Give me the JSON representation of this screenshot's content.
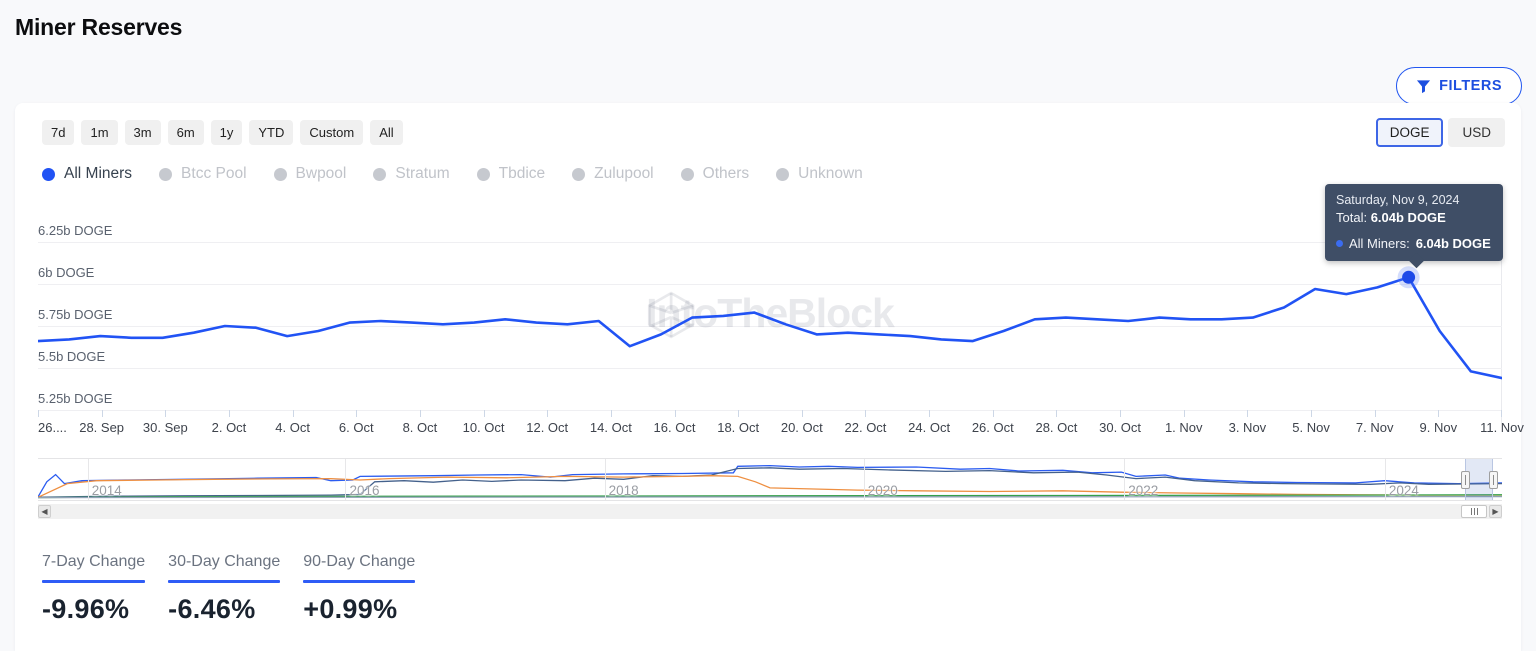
{
  "header": {
    "title": "Miner Reserves",
    "filters_label": "FILTERS"
  },
  "watermark": "IntoTheBlock",
  "time_ranges": [
    "7d",
    "1m",
    "3m",
    "6m",
    "1y",
    "YTD",
    "Custom",
    "All"
  ],
  "currency_options": [
    {
      "label": "DOGE",
      "selected": true
    },
    {
      "label": "USD",
      "selected": false
    }
  ],
  "legend": [
    {
      "label": "All Miners",
      "active": true
    },
    {
      "label": "Btcc Pool",
      "active": false
    },
    {
      "label": "Bwpool",
      "active": false
    },
    {
      "label": "Stratum",
      "active": false
    },
    {
      "label": "Tbdice",
      "active": false
    },
    {
      "label": "Zulupool",
      "active": false
    },
    {
      "label": "Others",
      "active": false
    },
    {
      "label": "Unknown",
      "active": false
    }
  ],
  "tooltip": {
    "date": "Saturday, Nov 9, 2024",
    "total_label": "Total:",
    "total_value": "6.04b DOGE",
    "series_label": "All Miners:",
    "series_value": "6.04b DOGE"
  },
  "stats": [
    {
      "label": "7-Day Change",
      "value": "-9.96%"
    },
    {
      "label": "30-Day Change",
      "value": "-6.46%"
    },
    {
      "label": "90-Day Change",
      "value": "+0.99%"
    }
  ],
  "colors": {
    "accent_blue": "#2257f0",
    "line_blue": "#2153f4",
    "marker_blue": "#1d49e8",
    "tooltip_bg": "#3f4e66",
    "nav_blue": "#2b5cf0",
    "nav_navy": "#44618c",
    "nav_orange": "#ee8f41",
    "nav_green": "#34a04a",
    "nav_gray": "#8fa0b5"
  },
  "chart_data": {
    "type": "line",
    "title": "Miner Reserves (DOGE)",
    "unit": "DOGE",
    "legend_position": "top-left",
    "grid": "horizontal",
    "y_ticks": [
      {
        "label": "6.25b DOGE",
        "value": 6.25
      },
      {
        "label": "6b DOGE",
        "value": 6.0
      },
      {
        "label": "5.75b DOGE",
        "value": 5.75
      },
      {
        "label": "5.5b DOGE",
        "value": 5.5
      },
      {
        "label": "5.25b DOGE",
        "value": 5.25
      }
    ],
    "ylim": [
      5.25,
      6.25
    ],
    "x_labels": [
      "26....",
      "28. Sep",
      "30. Sep",
      "2. Oct",
      "4. Oct",
      "6. Oct",
      "8. Oct",
      "10. Oct",
      "12. Oct",
      "14. Oct",
      "16. Oct",
      "18. Oct",
      "20. Oct",
      "22. Oct",
      "24. Oct",
      "26. Oct",
      "28. Oct",
      "30. Oct",
      "1. Nov",
      "3. Nov",
      "5. Nov",
      "7. Nov",
      "9. Nov",
      "11. Nov"
    ],
    "series": [
      {
        "name": "All Miners",
        "values_billion_doge": [
          5.66,
          5.67,
          5.69,
          5.68,
          5.68,
          5.71,
          5.75,
          5.74,
          5.69,
          5.72,
          5.77,
          5.78,
          5.77,
          5.76,
          5.77,
          5.79,
          5.77,
          5.76,
          5.78,
          5.63,
          5.7,
          5.8,
          5.81,
          5.83,
          5.76,
          5.7,
          5.71,
          5.7,
          5.69,
          5.67,
          5.66,
          5.72,
          5.79,
          5.8,
          5.79,
          5.78,
          5.8,
          5.79,
          5.79,
          5.8,
          5.86,
          5.97,
          5.94,
          5.98,
          6.04,
          5.72,
          5.48,
          5.44
        ]
      }
    ],
    "marker": {
      "index": 44,
      "date": "Nov 9, 2024",
      "value": 6.04
    },
    "navigator": {
      "years": [
        "2014",
        "2016",
        "2018",
        "2020",
        "2022",
        "2024"
      ],
      "year_fracs": [
        0.034,
        0.21,
        0.387,
        0.564,
        0.742,
        0.92
      ],
      "selection": [
        0.975,
        0.994
      ],
      "series": [
        {
          "color": "#2b5cf0",
          "pts": [
            [
              0,
              0.97
            ],
            [
              0.006,
              0.55
            ],
            [
              0.012,
              0.35
            ],
            [
              0.018,
              0.6
            ],
            [
              0.03,
              0.52
            ],
            [
              0.06,
              0.5
            ],
            [
              0.1,
              0.48
            ],
            [
              0.15,
              0.45
            ],
            [
              0.19,
              0.43
            ],
            [
              0.2,
              0.52
            ],
            [
              0.215,
              0.5
            ],
            [
              0.22,
              0.4
            ],
            [
              0.27,
              0.38
            ],
            [
              0.3,
              0.36
            ],
            [
              0.33,
              0.35
            ],
            [
              0.35,
              0.42
            ],
            [
              0.365,
              0.35
            ],
            [
              0.4,
              0.33
            ],
            [
              0.44,
              0.32
            ],
            [
              0.475,
              0.3
            ],
            [
              0.478,
              0.12
            ],
            [
              0.5,
              0.1
            ],
            [
              0.52,
              0.14
            ],
            [
              0.54,
              0.12
            ],
            [
              0.56,
              0.15
            ],
            [
              0.6,
              0.14
            ],
            [
              0.63,
              0.2
            ],
            [
              0.65,
              0.18
            ],
            [
              0.67,
              0.25
            ],
            [
              0.7,
              0.23
            ],
            [
              0.72,
              0.3
            ],
            [
              0.74,
              0.28
            ],
            [
              0.75,
              0.4
            ],
            [
              0.77,
              0.36
            ],
            [
              0.78,
              0.45
            ],
            [
              0.8,
              0.5
            ],
            [
              0.83,
              0.55
            ],
            [
              0.86,
              0.57
            ],
            [
              0.9,
              0.58
            ],
            [
              0.92,
              0.52
            ],
            [
              0.94,
              0.58
            ],
            [
              0.97,
              0.6
            ],
            [
              1,
              0.58
            ]
          ]
        },
        {
          "color": "#44618c",
          "pts": [
            [
              0,
              0.98
            ],
            [
              0.05,
              0.95
            ],
            [
              0.1,
              0.94
            ],
            [
              0.15,
              0.93
            ],
            [
              0.2,
              0.92
            ],
            [
              0.22,
              0.9
            ],
            [
              0.23,
              0.55
            ],
            [
              0.25,
              0.52
            ],
            [
              0.27,
              0.56
            ],
            [
              0.29,
              0.5
            ],
            [
              0.31,
              0.54
            ],
            [
              0.33,
              0.5
            ],
            [
              0.36,
              0.52
            ],
            [
              0.38,
              0.45
            ],
            [
              0.4,
              0.48
            ],
            [
              0.42,
              0.38
            ],
            [
              0.44,
              0.4
            ],
            [
              0.46,
              0.36
            ],
            [
              0.478,
              0.18
            ],
            [
              0.5,
              0.16
            ],
            [
              0.52,
              0.2
            ],
            [
              0.55,
              0.18
            ],
            [
              0.58,
              0.22
            ],
            [
              0.62,
              0.26
            ],
            [
              0.65,
              0.24
            ],
            [
              0.68,
              0.3
            ],
            [
              0.71,
              0.28
            ],
            [
              0.73,
              0.36
            ],
            [
              0.75,
              0.46
            ],
            [
              0.77,
              0.42
            ],
            [
              0.79,
              0.52
            ],
            [
              0.82,
              0.58
            ],
            [
              0.85,
              0.6
            ],
            [
              0.88,
              0.61
            ],
            [
              0.91,
              0.62
            ],
            [
              0.93,
              0.58
            ],
            [
              0.95,
              0.62
            ],
            [
              1,
              0.6
            ]
          ]
        },
        {
          "color": "#ee8f41",
          "pts": [
            [
              0,
              0.98
            ],
            [
              0.02,
              0.6
            ],
            [
              0.04,
              0.52
            ],
            [
              0.08,
              0.5
            ],
            [
              0.12,
              0.48
            ],
            [
              0.16,
              0.47
            ],
            [
              0.2,
              0.46
            ],
            [
              0.22,
              0.5
            ],
            [
              0.24,
              0.46
            ],
            [
              0.28,
              0.42
            ],
            [
              0.32,
              0.44
            ],
            [
              0.36,
              0.4
            ],
            [
              0.4,
              0.42
            ],
            [
              0.44,
              0.4
            ],
            [
              0.46,
              0.38
            ],
            [
              0.478,
              0.4
            ],
            [
              0.49,
              0.55
            ],
            [
              0.5,
              0.72
            ],
            [
              0.53,
              0.75
            ],
            [
              0.56,
              0.78
            ],
            [
              0.6,
              0.8
            ],
            [
              0.65,
              0.82
            ],
            [
              0.7,
              0.8
            ],
            [
              0.74,
              0.84
            ],
            [
              0.78,
              0.86
            ],
            [
              0.82,
              0.88
            ],
            [
              0.86,
              0.9
            ],
            [
              0.9,
              0.91
            ],
            [
              0.95,
              0.92
            ],
            [
              1,
              0.92
            ]
          ]
        },
        {
          "color": "#34a04a",
          "pts": [
            [
              0,
              0.99
            ],
            [
              0.1,
              0.96
            ],
            [
              0.3,
              0.95
            ],
            [
              0.5,
              0.94
            ],
            [
              0.7,
              0.93
            ],
            [
              0.9,
              0.92
            ],
            [
              1,
              0.91
            ]
          ]
        },
        {
          "color": "#8fa0b5",
          "pts": [
            [
              0,
              0.99
            ],
            [
              0.5,
              0.97
            ],
            [
              1,
              0.96
            ]
          ]
        }
      ]
    }
  }
}
